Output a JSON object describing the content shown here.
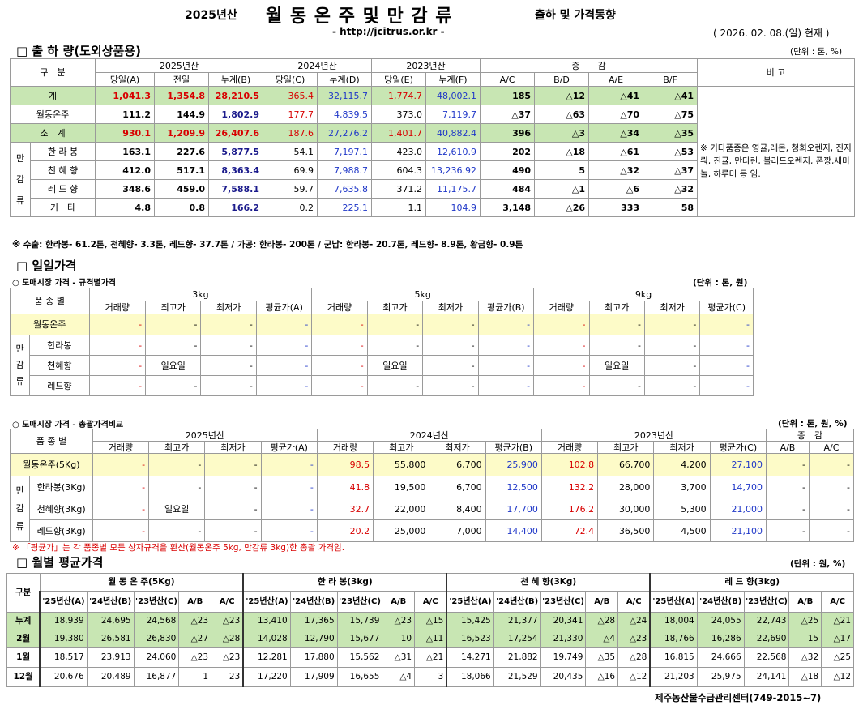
{
  "header": {
    "title_left": "2025년산",
    "title_main": "월 동 온 주 및 만 감 류",
    "title_right": "출하 및 가격동향",
    "url": "- http://jcitrus.or.kr -",
    "date": "( 2026. 02. 08.(일) 현재 )"
  },
  "s1": {
    "title": "□ 출 하 량(도외상품용)",
    "unit": "(단위 : 톤, %)",
    "h": {
      "gubun": "구　분",
      "y2025": "2025년산",
      "y2024": "2024년산",
      "y2023": "2023년산",
      "change": "증　　감",
      "bigo": "비 고",
      "c1": "당일(A)",
      "c2": "전일",
      "c3": "누계(B)",
      "c4": "당일(C)",
      "c5": "누계(D)",
      "c6": "당일(E)",
      "c7": "누계(F)",
      "c8": "A/C",
      "c9": "B/D",
      "c10": "A/E",
      "c11": "B/F"
    },
    "group": [
      "만",
      "감",
      "류"
    ],
    "rows": [
      [
        "계",
        "1,041.3",
        "1,354.8",
        "28,210.5",
        "365.4",
        "32,115.7",
        "1,774.7",
        "48,002.1",
        "185",
        "△12",
        "△41",
        "△41"
      ],
      [
        "월동온주",
        "111.2",
        "144.9",
        "1,802.9",
        "177.7",
        "4,839.5",
        "373.0",
        "7,119.7",
        "△37",
        "△63",
        "△70",
        "△75"
      ],
      [
        "소　계",
        "930.1",
        "1,209.9",
        "26,407.6",
        "187.6",
        "27,276.2",
        "1,401.7",
        "40,882.4",
        "396",
        "△3",
        "△34",
        "△35"
      ],
      [
        "한 라 봉",
        "163.1",
        "227.6",
        "5,877.5",
        "54.1",
        "7,197.1",
        "423.0",
        "12,610.9",
        "202",
        "△18",
        "△61",
        "△53"
      ],
      [
        "천 혜 향",
        "412.0",
        "517.1",
        "8,363.4",
        "69.9",
        "7,988.7",
        "604.3",
        "13,236.92",
        "490",
        "5",
        "△32",
        "△37"
      ],
      [
        "레 드 향",
        "348.6",
        "459.0",
        "7,588.1",
        "59.7",
        "7,635.8",
        "371.2",
        "11,175.7",
        "484",
        "△1",
        "△6",
        "△32"
      ],
      [
        "기　타",
        "4.8",
        "0.8",
        "166.2",
        "0.2",
        "225.1",
        "1.1",
        "104.9",
        "3,148",
        "△26",
        "333",
        "58"
      ]
    ],
    "bigo_note": "※ 기타품종은 영귤,레몬, 청희오렌지, 진지뤄, 진귤, 만다린, 블러드오렌지, 폰깡,세미놀, 하루미 등 임.",
    "footnote": "※ 수출: 한라봉- 61.2톤, 천혜향- 3.3톤, 레드향- 37.7톤 / 가공: 한라봉- 200톤 /  군납: 한라봉- 20.7톤, 레드향- 8.9톤, 황금향- 0.9톤"
  },
  "s2": {
    "title": "□ 일일가격",
    "sub": "○ 도매시장 가격 - 규격별가격",
    "unit": "(단위 : 톤, 원)",
    "h": {
      "pum": "품 종 별",
      "k3": "3kg",
      "k5": "5kg",
      "k9": "9kg",
      "a": "거래량",
      "b": "최고가",
      "c": "최저가",
      "dA": "평균가(A)",
      "dB": "평균가(B)",
      "dC": "평균가(C)"
    },
    "group": [
      "만",
      "감",
      "류"
    ],
    "rows": [
      [
        "월동온주",
        "-",
        "-",
        "-",
        "-",
        "-",
        "-",
        "-",
        "-",
        "-",
        "-",
        "-",
        "-"
      ],
      [
        "한라봉",
        "-",
        "-",
        "-",
        "-",
        "-",
        "-",
        "-",
        "-",
        "-",
        "-",
        "-",
        "-"
      ],
      [
        "천혜향",
        "-",
        "일요일",
        "-",
        "-",
        "-",
        "일요일",
        "-",
        "-",
        "-",
        "일요일",
        "-",
        "-"
      ],
      [
        "레드향",
        "-",
        "-",
        "-",
        "-",
        "-",
        "-",
        "-",
        "-",
        "-",
        "-",
        "-",
        "-"
      ]
    ]
  },
  "s3": {
    "sub": "○ 도매시장 가격 - 총괄가격비교",
    "unit": "(단위 : 톤, 원, %)",
    "h": {
      "pum": "품 종 별",
      "y2025": "2025년산",
      "y2024": "2024년산",
      "y2023": "2023년산",
      "change": "증　감",
      "a": "거래량",
      "b": "최고가",
      "c": "최저가",
      "dA": "평균가(A)",
      "dB": "평균가(B)",
      "dC": "평균가(C)",
      "ab": "A/B",
      "ac": "A/C"
    },
    "group": [
      "만",
      "감",
      "류"
    ],
    "rows": [
      [
        "월동온주(5Kg)",
        "-",
        "-",
        "-",
        "-",
        "98.5",
        "55,800",
        "6,700",
        "25,900",
        "102.8",
        "66,700",
        "4,200",
        "27,100",
        "-",
        "-"
      ],
      [
        "한라봉(3Kg)",
        "-",
        "-",
        "-",
        "-",
        "41.8",
        "19,500",
        "6,700",
        "12,500",
        "132.2",
        "28,000",
        "3,700",
        "14,700",
        "-",
        "-"
      ],
      [
        "천혜향(3Kg)",
        "-",
        "일요일",
        "-",
        "-",
        "32.7",
        "22,000",
        "8,400",
        "17,700",
        "176.2",
        "30,000",
        "5,300",
        "21,000",
        "-",
        "-"
      ],
      [
        "레드향(3Kg)",
        "-",
        "-",
        "-",
        "-",
        "20.2",
        "25,000",
        "7,000",
        "14,400",
        "72.4",
        "36,500",
        "4,500",
        "21,100",
        "-",
        "-"
      ]
    ],
    "footnote": "※ 「평균가」는 각 품종별 모든 상자규격을 환산(월동온주 5kg, 만감류 3kg)한 총괄 가격임."
  },
  "s4": {
    "title": "□ 월별 평균가격",
    "unit": "(단위 : 원, %)",
    "h": {
      "gubun": "구분",
      "g1": "월 동 온 주(5Kg)",
      "g2": "한 라 봉(3kg)",
      "g3": "천 혜 향(3Kg)",
      "g4": "레 드 향(3kg)",
      "a": "'25년산(A)",
      "b": "'24년산(B)",
      "c": "'23년산(C)",
      "ab": "A/B",
      "ac": "A/C"
    },
    "rows": [
      [
        "누계",
        "18,939",
        "24,695",
        "24,568",
        "△23",
        "△23",
        "13,410",
        "17,365",
        "15,739",
        "△23",
        "△15",
        "15,425",
        "21,377",
        "20,341",
        "△28",
        "△24",
        "18,004",
        "24,055",
        "22,743",
        "△25",
        "△21"
      ],
      [
        "2월",
        "19,380",
        "26,581",
        "26,830",
        "△27",
        "△28",
        "14,028",
        "12,790",
        "15,677",
        "10",
        "△11",
        "16,523",
        "17,254",
        "21,330",
        "△4",
        "△23",
        "18,766",
        "16,286",
        "22,690",
        "15",
        "△17"
      ],
      [
        "1월",
        "18,517",
        "23,913",
        "24,060",
        "△23",
        "△23",
        "12,281",
        "17,880",
        "15,562",
        "△31",
        "△21",
        "14,271",
        "21,882",
        "19,749",
        "△35",
        "△28",
        "16,815",
        "24,666",
        "22,568",
        "△32",
        "△25"
      ],
      [
        "12월",
        "20,676",
        "20,489",
        "16,877",
        "1",
        "23",
        "17,220",
        "17,909",
        "16,655",
        "△4",
        "3",
        "18,066",
        "21,529",
        "20,435",
        "△16",
        "△12",
        "21,203",
        "25,975",
        "24,141",
        "△18",
        "△12"
      ]
    ]
  },
  "footer": "제주농산물수급관리센터(749-2015~7)"
}
